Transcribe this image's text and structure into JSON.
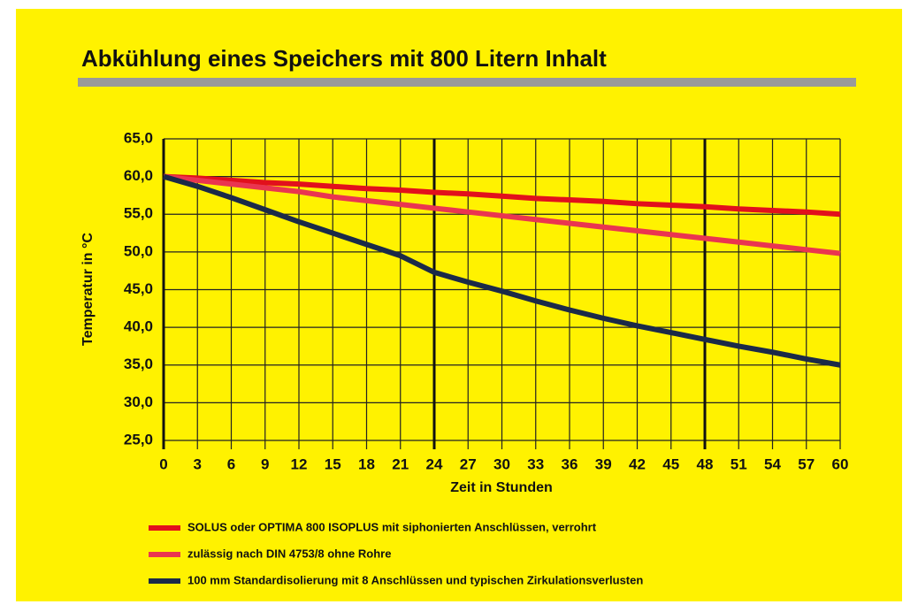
{
  "chart_data": {
    "type": "line",
    "title": "Abkühlung eines Speichers mit 800 Litern Inhalt",
    "y_label": "Temperatur in °C",
    "x_label": "Zeit in Stunden",
    "x": [
      0,
      3,
      6,
      9,
      12,
      15,
      18,
      21,
      24,
      27,
      30,
      33,
      36,
      39,
      42,
      45,
      48,
      51,
      54,
      57,
      60
    ],
    "xlim": [
      0,
      60
    ],
    "xticks": [
      0,
      3,
      6,
      9,
      12,
      15,
      18,
      21,
      24,
      27,
      30,
      33,
      36,
      39,
      42,
      45,
      48,
      51,
      54,
      57,
      60
    ],
    "major_xlines": [
      0,
      24,
      48
    ],
    "ylim": [
      25,
      65
    ],
    "yticks": [
      {
        "value": 25,
        "label": "25,0"
      },
      {
        "value": 30,
        "label": "30,0"
      },
      {
        "value": 35,
        "label": "35,0"
      },
      {
        "value": 40,
        "label": "40,0"
      },
      {
        "value": 45,
        "label": "45,0"
      },
      {
        "value": 50,
        "label": "50,0"
      },
      {
        "value": 55,
        "label": "55,0"
      },
      {
        "value": 60,
        "label": "60,0"
      },
      {
        "value": 65,
        "label": "65,0"
      }
    ],
    "grid": true,
    "series": [
      {
        "name": "SOLUS oder OPTIMA 800 ISOPLUS mit siphonierten Anschlüssen, verrohrt",
        "color": "#e2101c",
        "values": [
          60,
          59.8,
          59.5,
          59.2,
          59,
          58.7,
          58.4,
          58.2,
          57.9,
          57.7,
          57.4,
          57.1,
          56.9,
          56.7,
          56.4,
          56.2,
          56,
          55.7,
          55.5,
          55.3,
          55
        ]
      },
      {
        "name": "zulässig nach DIN 4753/8 ohne Rohre",
        "color": "#ea3550",
        "values": [
          60,
          59.5,
          59,
          58.5,
          58,
          57.3,
          56.8,
          56.3,
          55.8,
          55.3,
          54.8,
          54.3,
          53.8,
          53.3,
          52.8,
          52.3,
          51.8,
          51.3,
          50.8,
          50.3,
          49.8
        ]
      },
      {
        "name": "100 mm Standardisolierung mit 8 Anschlüssen und typischen Zirkulationsverlusten",
        "color": "#1b2a48",
        "values": [
          60,
          58.7,
          57.2,
          55.6,
          54,
          52.5,
          51,
          49.5,
          47.3,
          46,
          44.8,
          43.5,
          42.3,
          41.2,
          40.2,
          39.3,
          38.4,
          37.5,
          36.7,
          35.8,
          35
        ]
      }
    ]
  }
}
